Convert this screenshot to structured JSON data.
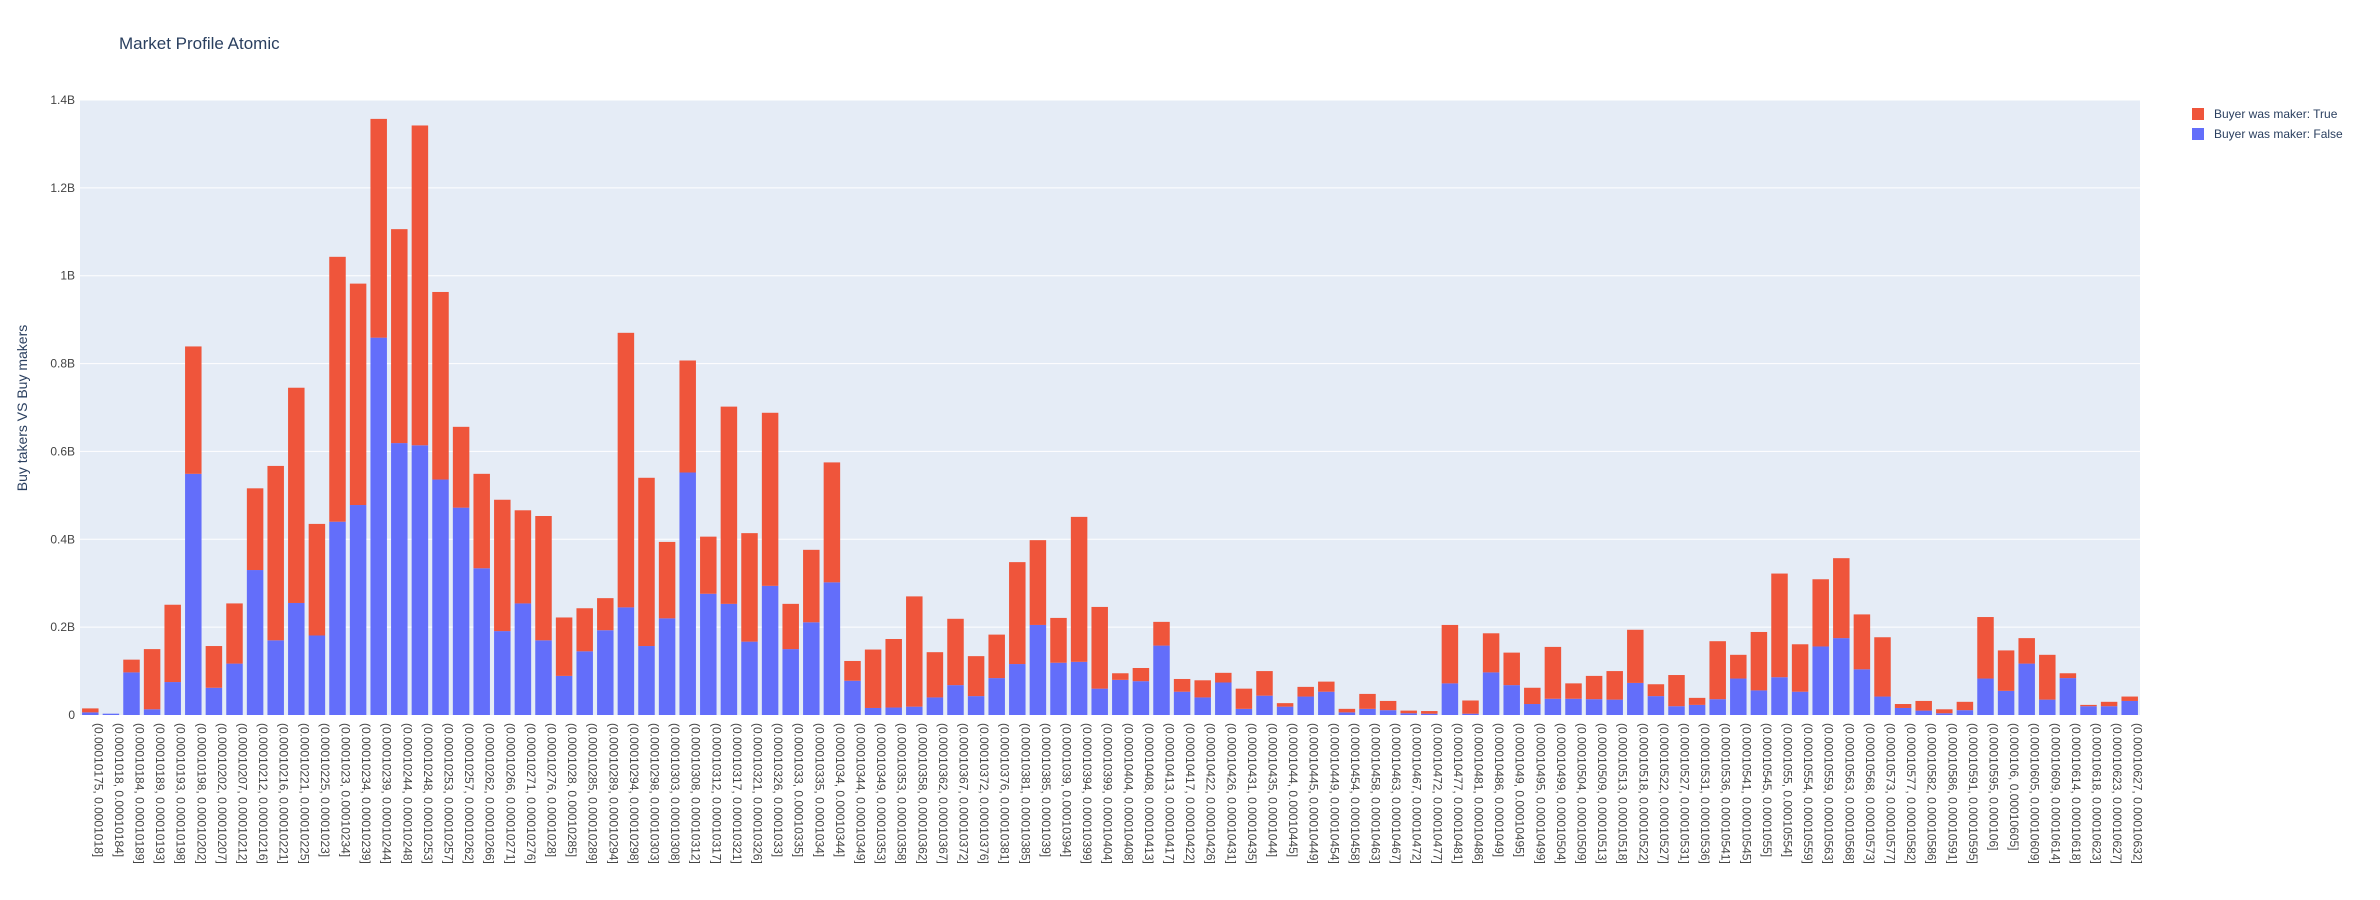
{
  "chart_data": {
    "type": "bar",
    "barmode": "stack",
    "title": "Market Profile Atomic",
    "ylabel": "Buy takers VS Buy makers",
    "xlabel": "",
    "ylim": [
      0,
      1400000000
    ],
    "yticks": [
      0,
      200000000,
      400000000,
      600000000,
      800000000,
      1000000000,
      1200000000,
      1400000000
    ],
    "ytick_labels": [
      "0",
      "0.2B",
      "0.4B",
      "0.6B",
      "0.8B",
      "1B",
      "1.2B",
      "1.4B"
    ],
    "grid": true,
    "legend_position": "top-right",
    "categories": [
      "(0.00010175, 0.0001018]",
      "(0.0001018, 0.00010184]",
      "(0.00010184, 0.00010189]",
      "(0.00010189, 0.00010193]",
      "(0.00010193, 0.00010198]",
      "(0.00010198, 0.00010202]",
      "(0.00010202, 0.00010207]",
      "(0.00010207, 0.00010212]",
      "(0.00010212, 0.00010216]",
      "(0.00010216, 0.00010221]",
      "(0.00010221, 0.00010225]",
      "(0.00010225, 0.0001023]",
      "(0.0001023, 0.00010234]",
      "(0.00010234, 0.00010239]",
      "(0.00010239, 0.00010244]",
      "(0.00010244, 0.00010248]",
      "(0.00010248, 0.00010253]",
      "(0.00010253, 0.00010257]",
      "(0.00010257, 0.00010262]",
      "(0.00010262, 0.00010266]",
      "(0.00010266, 0.00010271]",
      "(0.00010271, 0.00010276]",
      "(0.00010276, 0.0001028]",
      "(0.0001028, 0.00010285]",
      "(0.00010285, 0.00010289]",
      "(0.00010289, 0.00010294]",
      "(0.00010294, 0.00010298]",
      "(0.00010298, 0.00010303]",
      "(0.00010303, 0.00010308]",
      "(0.00010308, 0.00010312]",
      "(0.00010312, 0.00010317]",
      "(0.00010317, 0.00010321]",
      "(0.00010321, 0.00010326]",
      "(0.00010326, 0.0001033]",
      "(0.0001033, 0.00010335]",
      "(0.00010335, 0.0001034]",
      "(0.0001034, 0.00010344]",
      "(0.00010344, 0.00010349]",
      "(0.00010349, 0.00010353]",
      "(0.00010353, 0.00010358]",
      "(0.00010358, 0.00010362]",
      "(0.00010362, 0.00010367]",
      "(0.00010367, 0.00010372]",
      "(0.00010372, 0.00010376]",
      "(0.00010376, 0.00010381]",
      "(0.00010381, 0.00010385]",
      "(0.00010385, 0.0001039]",
      "(0.0001039, 0.00010394]",
      "(0.00010394, 0.00010399]",
      "(0.00010399, 0.00010404]",
      "(0.00010404, 0.00010408]",
      "(0.00010408, 0.00010413]",
      "(0.00010413, 0.00010417]",
      "(0.00010417, 0.00010422]",
      "(0.00010422, 0.00010426]",
      "(0.00010426, 0.00010431]",
      "(0.00010431, 0.00010435]",
      "(0.00010435, 0.0001044]",
      "(0.0001044, 0.00010445]",
      "(0.00010445, 0.00010449]",
      "(0.00010449, 0.00010454]",
      "(0.00010454, 0.00010458]",
      "(0.00010458, 0.00010463]",
      "(0.00010463, 0.00010467]",
      "(0.00010467, 0.00010472]",
      "(0.00010472, 0.00010477]",
      "(0.00010477, 0.00010481]",
      "(0.00010481, 0.00010486]",
      "(0.00010486, 0.0001049]",
      "(0.0001049, 0.00010495]",
      "(0.00010495, 0.00010499]",
      "(0.00010499, 0.00010504]",
      "(0.00010504, 0.00010509]",
      "(0.00010509, 0.00010513]",
      "(0.00010513, 0.00010518]",
      "(0.00010518, 0.00010522]",
      "(0.00010522, 0.00010527]",
      "(0.00010527, 0.00010531]",
      "(0.00010531, 0.00010536]",
      "(0.00010536, 0.00010541]",
      "(0.00010541, 0.00010545]",
      "(0.00010545, 0.0001055]",
      "(0.0001055, 0.00010554]",
      "(0.00010554, 0.00010559]",
      "(0.00010559, 0.00010563]",
      "(0.00010563, 0.00010568]",
      "(0.00010568, 0.00010573]",
      "(0.00010573, 0.00010577]",
      "(0.00010577, 0.00010582]",
      "(0.00010582, 0.00010586]",
      "(0.00010586, 0.00010591]",
      "(0.00010591, 0.00010595]",
      "(0.00010595, 0.000106]",
      "(0.000106, 0.00010605]",
      "(0.00010605, 0.00010609]",
      "(0.00010609, 0.00010614]",
      "(0.00010614, 0.00010618]",
      "(0.00010618, 0.00010623]",
      "(0.00010623, 0.00010627]",
      "(0.00010627, 0.00010632]"
    ],
    "series": [
      {
        "name": "Buyer was maker: False",
        "color": "#636efa",
        "values": [
          6000000,
          3000000,
          97000000,
          13000000,
          75000000,
          549000000,
          62000000,
          117000000,
          330000000,
          170000000,
          255000000,
          181000000,
          440000000,
          478000000,
          859000000,
          619000000,
          614000000,
          536000000,
          472000000,
          334000000,
          191000000,
          254000000,
          170000000,
          89000000,
          145000000,
          193000000,
          245000000,
          157000000,
          220000000,
          552000000,
          276000000,
          253000000,
          167000000,
          294000000,
          150000000,
          211000000,
          302000000,
          78000000,
          16000000,
          17000000,
          19000000,
          40000000,
          68000000,
          43000000,
          84000000,
          116000000,
          205000000,
          119000000,
          121000000,
          60000000,
          80000000,
          77000000,
          158000000,
          53000000,
          40000000,
          74000000,
          14000000,
          44000000,
          19000000,
          42000000,
          53000000,
          6000000,
          14000000,
          11000000,
          4000000,
          3000000,
          72000000,
          3000000,
          97000000,
          68000000,
          25000000,
          37000000,
          37000000,
          36000000,
          35000000,
          73000000,
          43000000,
          20000000,
          23000000,
          36000000,
          83000000,
          56000000,
          86000000,
          53000000,
          156000000,
          175000000,
          104000000,
          42000000,
          16000000,
          10000000,
          4000000,
          11000000,
          83000000,
          55000000,
          117000000,
          35000000,
          84000000,
          20000000,
          20000000,
          32000000
        ]
      },
      {
        "name": "Buyer was maker: True",
        "color": "#ef553b",
        "values": [
          9000000,
          0,
          29000000,
          137000000,
          176000000,
          290000000,
          95000000,
          137000000,
          186000000,
          397000000,
          490000000,
          254000000,
          603000000,
          504000000,
          498000000,
          487000000,
          728000000,
          427000000,
          184000000,
          215000000,
          299000000,
          212000000,
          283000000,
          133000000,
          98000000,
          73000000,
          625000000,
          383000000,
          174000000,
          255000000,
          130000000,
          449000000,
          247000000,
          394000000,
          103000000,
          165000000,
          273000000,
          45000000,
          133000000,
          156000000,
          251000000,
          103000000,
          151000000,
          91000000,
          99000000,
          232000000,
          193000000,
          102000000,
          330000000,
          186000000,
          15000000,
          30000000,
          54000000,
          29000000,
          39000000,
          22000000,
          46000000,
          56000000,
          8000000,
          22000000,
          23000000,
          8000000,
          34000000,
          21000000,
          6000000,
          6000000,
          133000000,
          30000000,
          89000000,
          74000000,
          37000000,
          118000000,
          35000000,
          53000000,
          65000000,
          121000000,
          27000000,
          71000000,
          16000000,
          132000000,
          54000000,
          133000000,
          236000000,
          108000000,
          153000000,
          182000000,
          125000000,
          135000000,
          9000000,
          22000000,
          9000000,
          19000000,
          140000000,
          92000000,
          58000000,
          102000000,
          11000000,
          3000000,
          10000000,
          10000000
        ]
      }
    ]
  }
}
